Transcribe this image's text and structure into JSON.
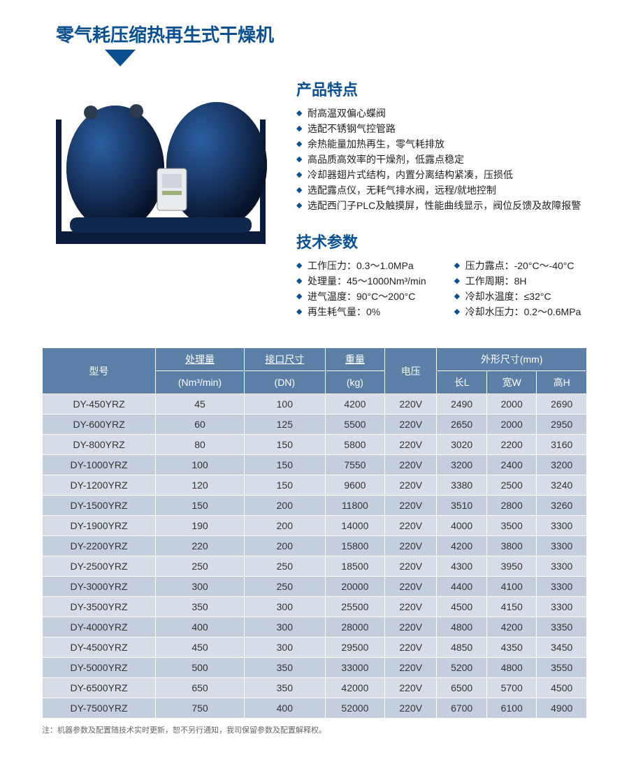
{
  "title": "零气耗压缩热再生式干燥机",
  "features_title": "产品特点",
  "features": [
    "耐高温双偏心蝶阀",
    "选配不锈钢气控管路",
    "余热能量加热再生，零气耗排放",
    "高品质高效率的干燥剂，低露点稳定",
    "冷却器翅片式结构，内置分离结构紧凑，压损低",
    "选配露点仪，无耗气排水阀，远程/就地控制",
    "选配西门子PLC及触摸屏，性能曲线显示，阀位反馈及故障报警"
  ],
  "params_title": "技术参数",
  "params_left": [
    "工作压力：0.3～1.0MPa",
    "处理量：45～1000Nm³/min",
    "进气温度：90°C～200°C",
    "再生耗气量：0%"
  ],
  "params_right": [
    "压力露点：-20°C～-40°C",
    "工作周期：8H",
    "冷却水温度：≤32°C",
    "冷却水压力：0.2～0.6MPa"
  ],
  "table": {
    "headers": {
      "model": "型号",
      "capacity": "处理量",
      "capacity_unit": "(Nm³/min)",
      "port": "接口尺寸",
      "port_unit": "(DN)",
      "weight": "重量",
      "weight_unit": "(kg)",
      "voltage": "电压",
      "dims": "外形尺寸(mm)",
      "len": "长L",
      "wid": "宽W",
      "hei": "高H"
    },
    "rows": [
      [
        "DY-450YRZ",
        "45",
        "100",
        "4200",
        "220V",
        "2490",
        "2000",
        "2690"
      ],
      [
        "DY-600YRZ",
        "60",
        "125",
        "5500",
        "220V",
        "2650",
        "2000",
        "2950"
      ],
      [
        "DY-800YRZ",
        "80",
        "150",
        "5800",
        "220V",
        "3020",
        "2200",
        "3160"
      ],
      [
        "DY-1000YRZ",
        "100",
        "150",
        "7550",
        "220V",
        "3200",
        "2400",
        "3200"
      ],
      [
        "DY-1200YRZ",
        "120",
        "150",
        "9600",
        "220V",
        "3380",
        "2500",
        "3240"
      ],
      [
        "DY-1500YRZ",
        "150",
        "200",
        "11800",
        "220V",
        "3510",
        "2800",
        "3260"
      ],
      [
        "DY-1900YRZ",
        "190",
        "200",
        "14000",
        "220V",
        "4000",
        "3500",
        "3300"
      ],
      [
        "DY-2200YRZ",
        "220",
        "200",
        "15800",
        "220V",
        "4200",
        "3800",
        "3300"
      ],
      [
        "DY-2500YRZ",
        "250",
        "250",
        "18500",
        "220V",
        "4300",
        "3950",
        "3300"
      ],
      [
        "DY-3000YRZ",
        "300",
        "250",
        "20000",
        "220V",
        "4400",
        "4100",
        "3300"
      ],
      [
        "DY-3500YRZ",
        "350",
        "300",
        "25500",
        "220V",
        "4500",
        "4150",
        "3300"
      ],
      [
        "DY-4000YRZ",
        "400",
        "300",
        "28000",
        "220V",
        "4800",
        "4200",
        "3350"
      ],
      [
        "DY-4500YRZ",
        "450",
        "300",
        "29500",
        "220V",
        "4850",
        "4350",
        "3450"
      ],
      [
        "DY-5000YRZ",
        "500",
        "350",
        "33000",
        "220V",
        "5200",
        "4800",
        "3550"
      ],
      [
        "DY-6500YRZ",
        "650",
        "350",
        "42000",
        "220V",
        "6500",
        "5700",
        "4500"
      ],
      [
        "DY-7500YRZ",
        "750",
        "400",
        "52000",
        "220V",
        "6700",
        "6100",
        "4900"
      ]
    ]
  },
  "footnote": "注：机器参数及配置随技术实时更新，恕不另行通知，我司保留参数及配置解释权。",
  "colors": {
    "accent": "#0a4f8f",
    "th_bg": "#5b7fa6",
    "row_odd": "#d6dde7",
    "row_even": "#c4cedd"
  }
}
